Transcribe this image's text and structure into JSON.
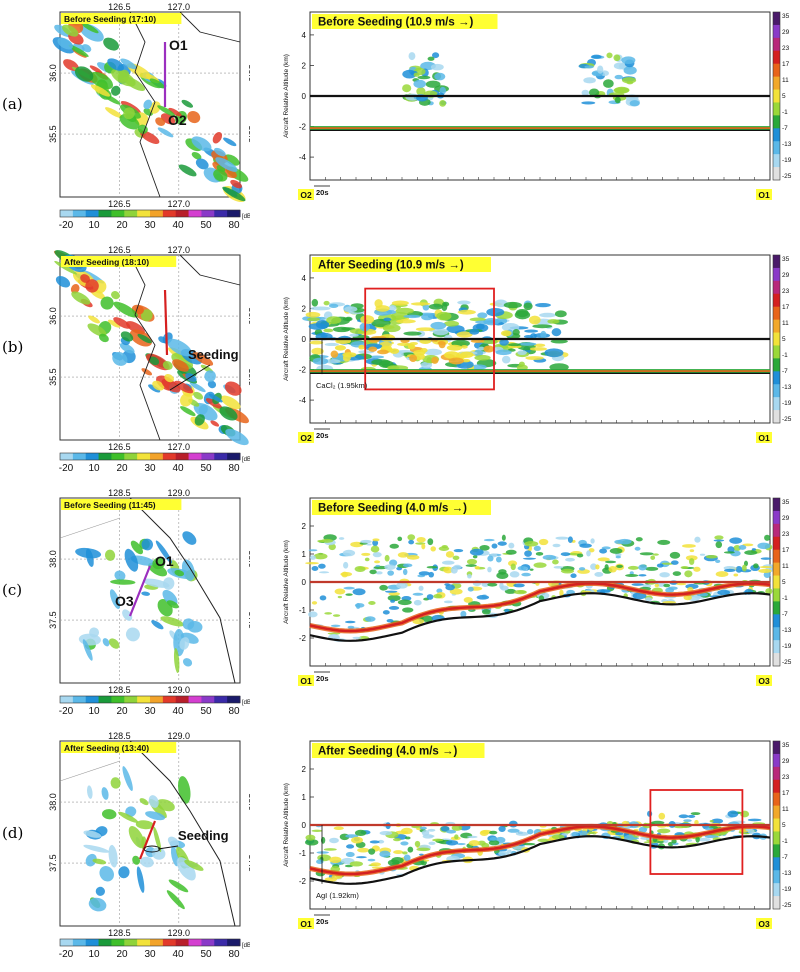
{
  "rows": [
    {
      "label": "(a)",
      "map": {
        "title": "Before Seeding (17:10)",
        "lon_ticks": [
          "126.5",
          "127.0"
        ],
        "lat_ticks": [
          "36.0",
          "35.5"
        ],
        "annotations": [
          "O1",
          "O2"
        ],
        "line_color": "#9b2fbf",
        "seeding_label": ""
      },
      "profile": {
        "title": "Before Seeding (10.9 m/s →)",
        "y_ticks": [
          "4",
          "2",
          "0",
          "-2",
          "-4"
        ],
        "ylim": [
          -5.5,
          5.5
        ],
        "ylabel": "Aircraft Relative Altitude (km)",
        "left_end": "O2",
        "right_end": "O1",
        "scale_label": "20s",
        "seed_label": "",
        "aircraft_line_color": "#111111",
        "red_box": false
      }
    },
    {
      "label": "(b)",
      "map": {
        "title": "After Seeding (18:10)",
        "lon_ticks": [
          "126.5",
          "127.0"
        ],
        "lat_ticks": [
          "36.0",
          "35.5"
        ],
        "annotations": [],
        "line_color": "#d62020",
        "seeding_label": "Seeding"
      },
      "profile": {
        "title": "After Seeding (10.9 m/s →)",
        "y_ticks": [
          "4",
          "2",
          "0",
          "-2",
          "-4"
        ],
        "ylim": [
          -5.5,
          5.5
        ],
        "ylabel": "Aircraft Relative Altitude (km)",
        "left_end": "O2",
        "right_end": "O1",
        "scale_label": "20s",
        "seed_label": "CaCl₂ (1.95km)",
        "aircraft_line_color": "#111111",
        "red_box": true
      }
    },
    {
      "label": "(c)",
      "map": {
        "title": "Before Seeding (11:45)",
        "lon_ticks": [
          "128.5",
          "129.0"
        ],
        "lat_ticks": [
          "38.0",
          "37.5"
        ],
        "annotations": [
          "O1",
          "O3"
        ],
        "line_color": "#9b2fbf",
        "seeding_label": ""
      },
      "profile": {
        "title": "Before Seeding (4.0 m/s →)",
        "y_ticks": [
          "2",
          "1",
          "0",
          "-1",
          "-2"
        ],
        "ylim": [
          -3,
          3
        ],
        "ylabel": "Aircraft Relative Altitude (km)",
        "left_end": "O1",
        "right_end": "O3",
        "scale_label": "20s",
        "seed_label": "",
        "aircraft_line_color": "#c0392b",
        "red_box": false
      }
    },
    {
      "label": "(d)",
      "map": {
        "title": "After Seeding (13:40)",
        "lon_ticks": [
          "128.5",
          "129.0"
        ],
        "lat_ticks": [
          "38.0",
          "37.5"
        ],
        "annotations": [],
        "line_color": "#d62020",
        "seeding_label": "Seeding"
      },
      "profile": {
        "title": "After Seeding (4.0 m/s →)",
        "y_ticks": [
          "2",
          "1",
          "0",
          "-1",
          "-2"
        ],
        "ylim": [
          -3,
          3
        ],
        "ylabel": "Aircraft Relative Altitude (km)",
        "left_end": "O1",
        "right_end": "O3",
        "scale_label": "20s",
        "seed_label": "AgI (1.92km)",
        "aircraft_line_color": "#c0392b",
        "red_box": true
      }
    }
  ],
  "map_colorbar": {
    "ticks": [
      "-20",
      "10",
      "20",
      "30",
      "40",
      "50",
      "80"
    ],
    "unit": "[dBZ]",
    "colors": [
      "#a8d8f0",
      "#5bb8e8",
      "#1f8fd8",
      "#1a9a3a",
      "#3fbf2a",
      "#8fd33a",
      "#f2e23a",
      "#f2a32a",
      "#e23a2a",
      "#b81f2a",
      "#d43fd0",
      "#8a3ac8",
      "#3a2aa8",
      "#1a1a6a"
    ]
  },
  "profile_colorbar": {
    "ticks": [
      "35",
      "29",
      "23",
      "17",
      "11",
      "5",
      "-1",
      "-7",
      "-13",
      "-19",
      "-25"
    ],
    "unit": "dBZ",
    "colors": [
      "#4a1a6a",
      "#8a3ac8",
      "#b8287a",
      "#d42020",
      "#e8641a",
      "#f2a82a",
      "#f2e23a",
      "#9ad83a",
      "#2aa83a",
      "#1f8fd8",
      "#5bb8e8",
      "#a8d8f0",
      "#e0e0e0"
    ]
  },
  "chart_data": [
    {
      "type": "heatmap",
      "title": "Before Seeding (10.9 m/s →)",
      "ylabel": "Aircraft Relative Altitude (km)",
      "ylim": [
        -5.5,
        5.5
      ],
      "colorbar_label": "dBZ"
    },
    {
      "type": "heatmap",
      "title": "After Seeding (10.9 m/s →)",
      "ylabel": "Aircraft Relative Altitude (km)",
      "ylim": [
        -5.5,
        5.5
      ],
      "colorbar_label": "dBZ",
      "annotation": "CaCl₂ (1.95km)"
    },
    {
      "type": "heatmap",
      "title": "Before Seeding (4.0 m/s →)",
      "ylabel": "Aircraft Relative Altitude (km)",
      "ylim": [
        -3,
        3
      ],
      "colorbar_label": "dBZ"
    },
    {
      "type": "heatmap",
      "title": "After Seeding (4.0 m/s →)",
      "ylabel": "Aircraft Relative Altitude (km)",
      "ylim": [
        -3,
        3
      ],
      "colorbar_label": "dBZ",
      "annotation": "AgI (1.92km)"
    }
  ]
}
